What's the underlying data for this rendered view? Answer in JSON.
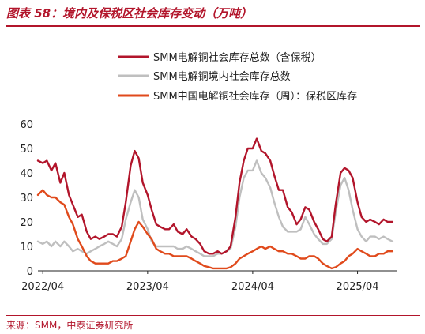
{
  "figure": {
    "title": "图表 58：境内及保税区社会库存变动（万吨）",
    "source": "来源：SMM，中泰证券研究所"
  },
  "chart_data": {
    "type": "line",
    "title": "图表 58：境内及保税区社会库存变动（万吨）",
    "xlabel": "",
    "ylabel": "",
    "ylim": [
      0,
      60
    ],
    "y_ticks": [
      0,
      10,
      20,
      30,
      40,
      50,
      60
    ],
    "x_ticks": [
      "2022/04",
      "2023/04",
      "2024/04",
      "2025/04"
    ],
    "xlim": [
      "2022-03-15",
      "2025-08-15"
    ],
    "grid": false,
    "legend_position": "top",
    "series": [
      {
        "name": "SMM电解铜社会库存总数（含保税）",
        "color": "#b2152b",
        "x": [
          "2022-03-15",
          "2022-04-01",
          "2022-04-15",
          "2022-05-01",
          "2022-05-15",
          "2022-06-01",
          "2022-06-15",
          "2022-07-01",
          "2022-07-15",
          "2022-08-01",
          "2022-08-15",
          "2022-09-01",
          "2022-09-15",
          "2022-10-01",
          "2022-10-15",
          "2022-11-01",
          "2022-11-15",
          "2022-12-01",
          "2022-12-15",
          "2023-01-01",
          "2023-01-15",
          "2023-02-01",
          "2023-02-15",
          "2023-03-01",
          "2023-03-15",
          "2023-04-01",
          "2023-04-15",
          "2023-05-01",
          "2023-05-15",
          "2023-06-01",
          "2023-06-15",
          "2023-07-01",
          "2023-07-15",
          "2023-08-01",
          "2023-08-15",
          "2023-09-01",
          "2023-09-15",
          "2023-10-01",
          "2023-10-15",
          "2023-11-01",
          "2023-11-15",
          "2023-12-01",
          "2023-12-15",
          "2024-01-01",
          "2024-01-15",
          "2024-02-01",
          "2024-02-15",
          "2024-03-01",
          "2024-03-15",
          "2024-04-01",
          "2024-04-15",
          "2024-05-01",
          "2024-05-15",
          "2024-06-01",
          "2024-06-15",
          "2024-07-01",
          "2024-07-15",
          "2024-08-01",
          "2024-08-15",
          "2024-09-01",
          "2024-09-15",
          "2024-10-01",
          "2024-10-15",
          "2024-11-01",
          "2024-11-15",
          "2024-12-01",
          "2024-12-15",
          "2025-01-01",
          "2025-01-15",
          "2025-02-01",
          "2025-02-15",
          "2025-03-01",
          "2025-03-15",
          "2025-04-01",
          "2025-04-15",
          "2025-05-01",
          "2025-05-15",
          "2025-06-01",
          "2025-06-15",
          "2025-07-01",
          "2025-07-15",
          "2025-08-01"
        ],
        "values": [
          45,
          44,
          45,
          41,
          44,
          36,
          40,
          31,
          27,
          22,
          23,
          16,
          13,
          14,
          13,
          14,
          15,
          15,
          14,
          18,
          28,
          43,
          49,
          46,
          36,
          31,
          25,
          19,
          18,
          17,
          17,
          19,
          16,
          15,
          17,
          14,
          13,
          11,
          8,
          7,
          7,
          8,
          7,
          8,
          10,
          22,
          36,
          45,
          50,
          50,
          54,
          49,
          48,
          45,
          39,
          33,
          33,
          26,
          24,
          19,
          21,
          26,
          25,
          20,
          17,
          13,
          12,
          14,
          27,
          40,
          42,
          41,
          38,
          28,
          22,
          20,
          21,
          20,
          19,
          21,
          20,
          20
        ]
      },
      {
        "name": "SMM电解铜境内社会库存总数",
        "color": "#bfbfbf",
        "x": [
          "2022-03-15",
          "2022-04-01",
          "2022-04-15",
          "2022-05-01",
          "2022-05-15",
          "2022-06-01",
          "2022-06-15",
          "2022-07-01",
          "2022-07-15",
          "2022-08-01",
          "2022-08-15",
          "2022-09-01",
          "2022-09-15",
          "2022-10-01",
          "2022-10-15",
          "2022-11-01",
          "2022-11-15",
          "2022-12-01",
          "2022-12-15",
          "2023-01-01",
          "2023-01-15",
          "2023-02-01",
          "2023-02-15",
          "2023-03-01",
          "2023-03-15",
          "2023-04-01",
          "2023-04-15",
          "2023-05-01",
          "2023-05-15",
          "2023-06-01",
          "2023-06-15",
          "2023-07-01",
          "2023-07-15",
          "2023-08-01",
          "2023-08-15",
          "2023-09-01",
          "2023-09-15",
          "2023-10-01",
          "2023-10-15",
          "2023-11-01",
          "2023-11-15",
          "2023-12-01",
          "2023-12-15",
          "2024-01-01",
          "2024-01-15",
          "2024-02-01",
          "2024-02-15",
          "2024-03-01",
          "2024-03-15",
          "2024-04-01",
          "2024-04-15",
          "2024-05-01",
          "2024-05-15",
          "2024-06-01",
          "2024-06-15",
          "2024-07-01",
          "2024-07-15",
          "2024-08-01",
          "2024-08-15",
          "2024-09-01",
          "2024-09-15",
          "2024-10-01",
          "2024-10-15",
          "2024-11-01",
          "2024-11-15",
          "2024-12-01",
          "2024-12-15",
          "2025-01-01",
          "2025-01-15",
          "2025-02-01",
          "2025-02-15",
          "2025-03-01",
          "2025-03-15",
          "2025-04-01",
          "2025-04-15",
          "2025-05-01",
          "2025-05-15",
          "2025-06-01",
          "2025-06-15",
          "2025-07-01",
          "2025-07-15",
          "2025-08-01"
        ],
        "values": [
          12,
          11,
          12,
          10,
          12,
          10,
          12,
          10,
          8,
          9,
          8,
          7,
          8,
          9,
          10,
          11,
          12,
          11,
          10,
          13,
          21,
          28,
          33,
          30,
          21,
          17,
          12,
          10,
          10,
          10,
          10,
          10,
          9,
          9,
          10,
          9,
          8,
          7,
          6,
          6,
          6,
          7,
          7,
          8,
          9,
          18,
          30,
          38,
          41,
          41,
          45,
          40,
          38,
          34,
          28,
          22,
          18,
          16,
          16,
          16,
          17,
          22,
          19,
          15,
          13,
          11,
          11,
          13,
          24,
          35,
          38,
          33,
          25,
          17,
          14,
          12,
          14,
          14,
          13,
          14,
          13,
          12
        ]
      },
      {
        "name": "SMM中国电解铜社会库存（周）：保税区库存",
        "color": "#e04a1c",
        "x": [
          "2022-03-15",
          "2022-04-01",
          "2022-04-15",
          "2022-05-01",
          "2022-05-15",
          "2022-06-01",
          "2022-06-15",
          "2022-07-01",
          "2022-07-15",
          "2022-08-01",
          "2022-08-15",
          "2022-09-01",
          "2022-09-15",
          "2022-10-01",
          "2022-10-15",
          "2022-11-01",
          "2022-11-15",
          "2022-12-01",
          "2022-12-15",
          "2023-01-01",
          "2023-01-15",
          "2023-02-01",
          "2023-02-15",
          "2023-03-01",
          "2023-03-15",
          "2023-04-01",
          "2023-04-15",
          "2023-05-01",
          "2023-05-15",
          "2023-06-01",
          "2023-06-15",
          "2023-07-01",
          "2023-07-15",
          "2023-08-01",
          "2023-08-15",
          "2023-09-01",
          "2023-09-15",
          "2023-10-01",
          "2023-10-15",
          "2023-11-01",
          "2023-11-15",
          "2023-12-01",
          "2023-12-15",
          "2024-01-01",
          "2024-01-15",
          "2024-02-01",
          "2024-02-15",
          "2024-03-01",
          "2024-03-15",
          "2024-04-01",
          "2024-04-15",
          "2024-05-01",
          "2024-05-15",
          "2024-06-01",
          "2024-06-15",
          "2024-07-01",
          "2024-07-15",
          "2024-08-01",
          "2024-08-15",
          "2024-09-01",
          "2024-09-15",
          "2024-10-01",
          "2024-10-15",
          "2024-11-01",
          "2024-11-15",
          "2024-12-01",
          "2024-12-15",
          "2025-01-01",
          "2025-01-15",
          "2025-02-01",
          "2025-02-15",
          "2025-03-01",
          "2025-03-15",
          "2025-04-01",
          "2025-04-15",
          "2025-05-01",
          "2025-05-15",
          "2025-06-01",
          "2025-06-15",
          "2025-07-01",
          "2025-07-15",
          "2025-08-01"
        ],
        "values": [
          31,
          33,
          31,
          30,
          30,
          28,
          27,
          22,
          19,
          13,
          10,
          6,
          4,
          3,
          3,
          3,
          3,
          4,
          4,
          5,
          6,
          12,
          17,
          20,
          18,
          15,
          13,
          9,
          8,
          7,
          7,
          6,
          6,
          6,
          6,
          5,
          4,
          3,
          2,
          1.5,
          1,
          1,
          1,
          1,
          1.5,
          3,
          5,
          6,
          7,
          8,
          9,
          10,
          9,
          10,
          9,
          8,
          8,
          7,
          7,
          6,
          5,
          5,
          6,
          6,
          5,
          3,
          2,
          1,
          1.5,
          3,
          4,
          6,
          7,
          9,
          8,
          7,
          6,
          6,
          7,
          7,
          8,
          8
        ]
      }
    ]
  }
}
